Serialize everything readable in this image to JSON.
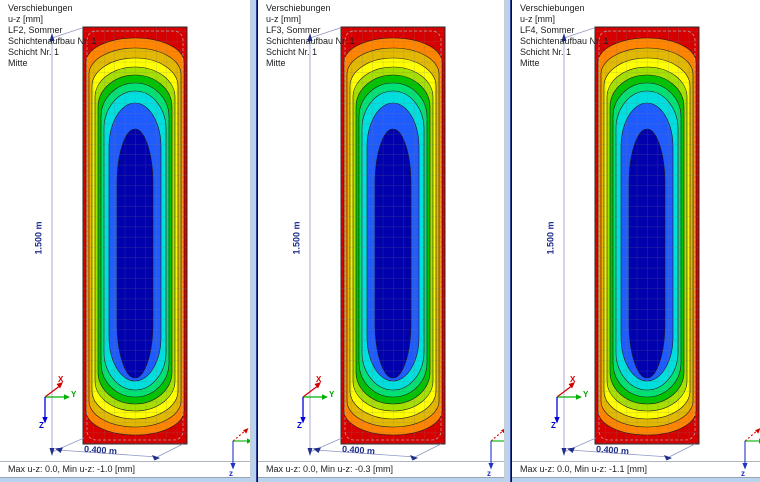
{
  "panels": [
    {
      "header": {
        "lines": [
          "Verschiebungen",
          "u-z [mm]",
          "LF2, Sommer",
          "Schichtenaufbau Nr. 1",
          "Schicht Nr. 1",
          "Mitte"
        ]
      },
      "dims": {
        "height_label": "1.500 m",
        "width_label": "0.400 m"
      },
      "axes": {
        "x": "X",
        "y": "Y",
        "z": "Z",
        "z_small": "z"
      },
      "status": "Max u-z: 0.0, Min u-z: -1.0 [mm]"
    },
    {
      "header": {
        "lines": [
          "Verschiebungen",
          "u-z [mm]",
          "LF3, Sommer",
          "Schichtenaufbau Nr. 1",
          "Schicht Nr. 1",
          "Mitte"
        ]
      },
      "dims": {
        "height_label": "1.500 m",
        "width_label": "0.400 m"
      },
      "axes": {
        "x": "X",
        "y": "Y",
        "z": "Z",
        "z_small": "z"
      },
      "status": "Max u-z: 0.0, Min u-z: -0.3 [mm]"
    },
    {
      "header": {
        "lines": [
          "Verschiebungen",
          "u-z [mm]",
          "LF4, Sommer",
          "Schichtenaufbau Nr. 1",
          "Schicht Nr. 1",
          "Mitte"
        ]
      },
      "dims": {
        "height_label": "1.500 m",
        "width_label": "0.400 m"
      },
      "axes": {
        "x": "X",
        "y": "Y",
        "z": "Z",
        "z_small": "z"
      },
      "status": "Max u-z: 0.0, Min u-z: -1.1 [mm]"
    }
  ],
  "axis_colors": {
    "x": "#d40000",
    "y": "#00a800",
    "z": "#0000cc"
  },
  "contour": {
    "description": "u-z displacement contour bands, edge (max 0.0) to center (min)",
    "mesh_color": "#7a7a7a",
    "outline_color": "#2a2a2a",
    "dimension_color": "#8f99c4",
    "arrow_color": "#20308c",
    "bands": [
      {
        "color": "#d60000",
        "ix": 0,
        "it": 0,
        "ib": 0,
        "cap": 0
      },
      {
        "color": "#ff8400",
        "ix": 3,
        "it": 11,
        "ib": 9,
        "cap": 24
      },
      {
        "color": "#e3b800",
        "ix": 6,
        "it": 21,
        "ib": 17,
        "cap": 26
      },
      {
        "color": "#ffff00",
        "ix": 9,
        "it": 31,
        "ib": 25,
        "cap": 28
      },
      {
        "color": "#a6e000",
        "ix": 12,
        "it": 40,
        "ib": 33,
        "cap": 30
      },
      {
        "color": "#00c400",
        "ix": 15,
        "it": 48,
        "ib": 40,
        "cap": 32
      },
      {
        "color": "#00e274",
        "ix": 18,
        "it": 56,
        "ib": 47,
        "cap": 34
      },
      {
        "color": "#00dede",
        "ix": 21,
        "it": 64,
        "ib": 54,
        "cap": 38
      },
      {
        "color": "#1f5cff",
        "ix": 26,
        "it": 76,
        "ib": 63,
        "cap": 44
      },
      {
        "color": "#0000ad",
        "ix": 34,
        "it": 102,
        "ib": 66,
        "cap": 55
      }
    ]
  }
}
